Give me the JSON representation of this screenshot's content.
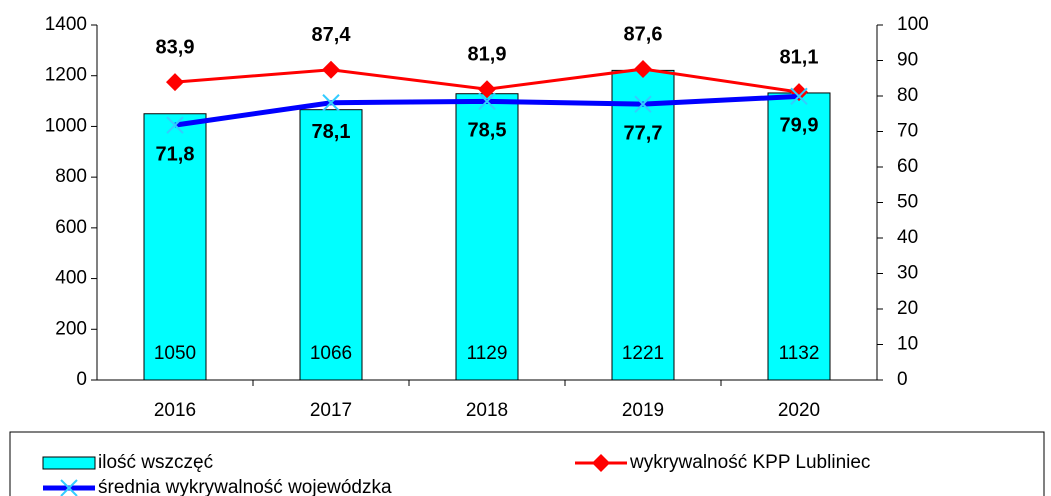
{
  "chart_data": {
    "type": "bar",
    "categories": [
      "2016",
      "2017",
      "2018",
      "2019",
      "2020"
    ],
    "series": [
      {
        "name": "ilość wszczęć",
        "type": "bar",
        "color": "#00ffff",
        "values": [
          1050,
          1066,
          1129,
          1221,
          1132
        ]
      },
      {
        "name": "wykrywalność KPP Lubliniec",
        "type": "line",
        "axis": "y2",
        "color": "#ff0000",
        "marker": "diamond",
        "values": [
          83.9,
          87.4,
          81.9,
          87.6,
          81.1
        ],
        "value_labels": [
          "83,9",
          "87,4",
          "81,9",
          "87,6",
          "81,1"
        ]
      },
      {
        "name": "średnia wykrywalność wojewódzka",
        "type": "line",
        "axis": "y2",
        "color": "#0000ff",
        "marker": "x",
        "marker_color": "#33ccff",
        "values": [
          71.8,
          78.1,
          78.5,
          77.7,
          79.9
        ],
        "value_labels": [
          "71,8",
          "78,1",
          "78,5",
          "77,7",
          "79,9"
        ]
      }
    ],
    "ylim": [
      0,
      1400
    ],
    "yticks": [
      0,
      200,
      400,
      600,
      800,
      1000,
      1200,
      1400
    ],
    "y2lim": [
      0,
      100
    ],
    "y2ticks": [
      0,
      10,
      20,
      30,
      40,
      50,
      60,
      70,
      80,
      90,
      100
    ],
    "grid": false
  }
}
